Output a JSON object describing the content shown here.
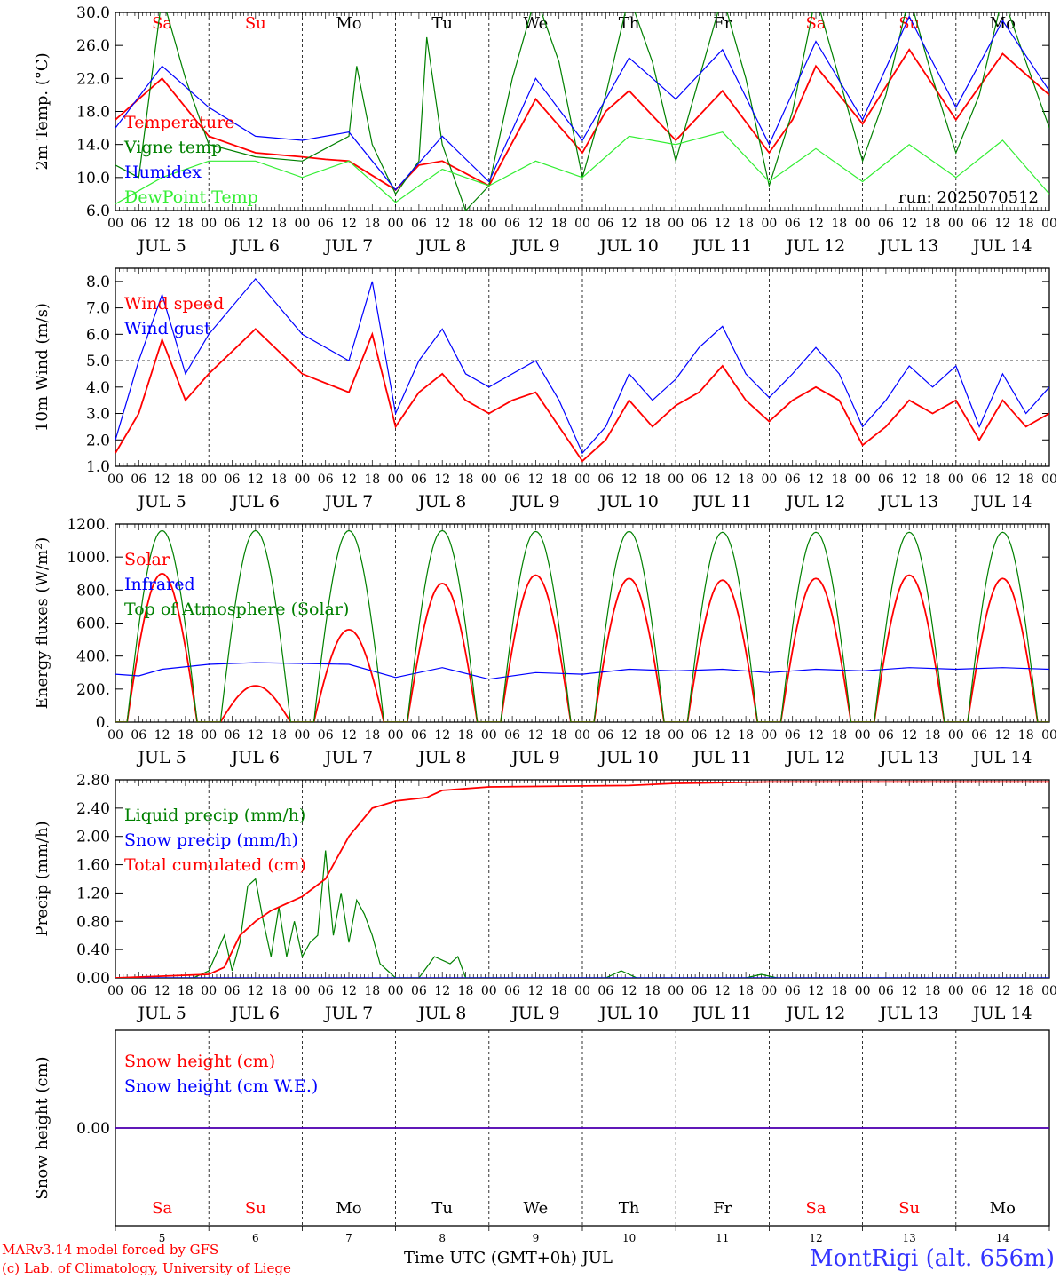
{
  "colors": {
    "red": "#ff0000",
    "green": "#008000",
    "blue": "#0000ff",
    "lightgreen": "#33ee33",
    "station": "#3333ff",
    "axis": "#000000"
  },
  "footer": {
    "model": "MARv3.14 model forced by GFS",
    "lab": "(c) Lab. of Climatology, University of Liege",
    "time_label": "Time UTC (GMT+0h) JUL",
    "station": "MontRigi (alt. 656m)"
  },
  "chart_data": {
    "type": "line",
    "time_axis": {
      "unit": "hours",
      "hour_ticks": [
        "00",
        "06",
        "12",
        "18"
      ],
      "days": [
        {
          "date": "JUL  5",
          "num": "5",
          "dow": "Sa",
          "weekend": true
        },
        {
          "date": "JUL  6",
          "num": "6",
          "dow": "Su",
          "weekend": true
        },
        {
          "date": "JUL  7",
          "num": "7",
          "dow": "Mo",
          "weekend": false
        },
        {
          "date": "JUL  8",
          "num": "8",
          "dow": "Tu",
          "weekend": false
        },
        {
          "date": "JUL  9",
          "num": "9",
          "dow": "We",
          "weekend": false
        },
        {
          "date": "JUL 10",
          "num": "10",
          "dow": "Th",
          "weekend": false
        },
        {
          "date": "JUL 11",
          "num": "11",
          "dow": "Fr",
          "weekend": false
        },
        {
          "date": "JUL 12",
          "num": "12",
          "dow": "Sa",
          "weekend": true
        },
        {
          "date": "JUL 13",
          "num": "13",
          "dow": "Su",
          "weekend": true
        },
        {
          "date": "JUL 14",
          "num": "14",
          "dow": "Mo",
          "weekend": false
        }
      ]
    },
    "panels": [
      {
        "id": "temp",
        "ylabel": "2m Temp. (°C)",
        "ylim": [
          6,
          30
        ],
        "yticks": [
          6,
          10,
          14,
          18,
          22,
          26,
          30
        ],
        "ytick_labels": [
          "6.0",
          "10.0",
          "14.0",
          "18.0",
          "22.0",
          "26.0",
          "30.0"
        ],
        "annotation": "run: 2025070512",
        "show_dow": true,
        "series": [
          {
            "name": "Temperature",
            "color": "red",
            "x": [
              0,
              12,
              24,
              36,
              48,
              54,
              60,
              72,
              78,
              84,
              96,
              108,
              120,
              126,
              132,
              144,
              156,
              168,
              174,
              180,
              192,
              204,
              216,
              228,
              240
            ],
            "y": [
              17,
              22,
              15,
              13,
              12.5,
              12.2,
              12,
              8.5,
              11.5,
              12,
              9,
              19.5,
              13,
              18,
              20.5,
              14.5,
              20.5,
              13,
              17,
              23.5,
              16.5,
              25.5,
              17,
              25,
              20
            ]
          },
          {
            "name": "Vigne temp",
            "color": "green",
            "x": [
              0,
              6,
              12,
              18,
              24,
              36,
              48,
              60,
              62,
              66,
              72,
              78,
              80,
              84,
              90,
              96,
              102,
              108,
              114,
              120,
              126,
              132,
              138,
              144,
              150,
              156,
              162,
              168,
              174,
              180,
              186,
              192,
              198,
              204,
              210,
              216,
              222,
              228,
              234,
              240
            ],
            "y": [
              11.5,
              10,
              32,
              22,
              14,
              12.5,
              12,
              15,
              23.5,
              14,
              8,
              12,
              27,
              14,
              6,
              9,
              22,
              32,
              24,
              10,
              20,
              32,
              24,
              12,
              22,
              32,
              22,
              9,
              18,
              32,
              22,
              12,
              20,
              32,
              22,
              13,
              20,
              32,
              24,
              16
            ]
          },
          {
            "name": "Humidex",
            "color": "blue",
            "x": [
              0,
              12,
              24,
              36,
              48,
              60,
              72,
              84,
              96,
              108,
              120,
              132,
              144,
              156,
              168,
              180,
              192,
              204,
              216,
              228,
              240
            ],
            "y": [
              16,
              23.5,
              18.5,
              15,
              14.5,
              15.5,
              8.5,
              15,
              9.5,
              22,
              14.5,
              24.5,
              19.5,
              25.5,
              14,
              26.5,
              17,
              29.5,
              18.5,
              29,
              20.5
            ]
          },
          {
            "name": "DewPoint Temp",
            "color": "lightgreen",
            "x": [
              0,
              12,
              24,
              36,
              48,
              60,
              72,
              84,
              96,
              108,
              120,
              132,
              144,
              156,
              168,
              180,
              192,
              204,
              216,
              228,
              240
            ],
            "y": [
              6.8,
              10,
              12,
              12,
              10,
              12,
              7,
              11,
              9,
              12,
              10,
              15,
              14,
              15.5,
              9.5,
              13.5,
              9.5,
              14,
              10,
              14.5,
              8
            ]
          }
        ]
      },
      {
        "id": "wind",
        "ylabel": "10m Wind (m/s)",
        "ylim": [
          1,
          8.5
        ],
        "yticks": [
          1,
          2,
          3,
          4,
          5,
          6,
          7,
          8
        ],
        "ytick_labels": [
          "1.0",
          "2.0",
          "3.0",
          "4.0",
          "5.0",
          "6.0",
          "7.0",
          "8.0"
        ],
        "dashed_line": 5,
        "series": [
          {
            "name": "Wind speed",
            "color": "red",
            "x": [
              0,
              6,
              12,
              18,
              24,
              36,
              48,
              60,
              66,
              72,
              78,
              84,
              90,
              96,
              102,
              108,
              114,
              120,
              126,
              132,
              138,
              144,
              150,
              156,
              162,
              168,
              174,
              180,
              186,
              192,
              198,
              204,
              210,
              216,
              222,
              228,
              234,
              240
            ],
            "y": [
              1.5,
              3,
              5.8,
              3.5,
              4.5,
              6.2,
              4.5,
              3.8,
              6,
              2.5,
              3.8,
              4.5,
              3.5,
              3,
              3.5,
              3.8,
              2.5,
              1.2,
              2,
              3.5,
              2.5,
              3.3,
              3.8,
              4.8,
              3.5,
              2.7,
              3.5,
              4,
              3.5,
              1.8,
              2.5,
              3.5,
              3,
              3.5,
              2,
              3.5,
              2.5,
              3
            ]
          },
          {
            "name": "Wind gust",
            "color": "blue",
            "x": [
              0,
              6,
              12,
              18,
              24,
              36,
              48,
              60,
              66,
              72,
              78,
              84,
              90,
              96,
              102,
              108,
              114,
              120,
              126,
              132,
              138,
              144,
              150,
              156,
              162,
              168,
              174,
              180,
              186,
              192,
              198,
              204,
              210,
              216,
              222,
              228,
              234,
              240
            ],
            "y": [
              2,
              5,
              7.5,
              4.5,
              6,
              8.1,
              6,
              5,
              8,
              3,
              5,
              6.2,
              4.5,
              4,
              4.5,
              5,
              3.5,
              1.5,
              2.5,
              4.5,
              3.5,
              4.3,
              5.5,
              6.3,
              4.5,
              3.6,
              4.5,
              5.5,
              4.5,
              2.5,
              3.5,
              4.8,
              4,
              4.8,
              2.5,
              4.5,
              3,
              4
            ]
          }
        ]
      },
      {
        "id": "energy",
        "ylabel": "Energy fluxes (W/m²)",
        "ylim": [
          0,
          1200
        ],
        "yticks": [
          0,
          200,
          400,
          600,
          800,
          1000,
          1200
        ],
        "ytick_labels": [
          "0.",
          "200.",
          "400.",
          "600.",
          "800.",
          "1000.",
          "1200."
        ],
        "series": [
          {
            "name": "Solar",
            "color": "red",
            "type": "daily_peaks",
            "peaks": [
              900,
              220,
              560,
              840,
              890,
              870,
              860,
              870,
              890,
              870
            ]
          },
          {
            "name": "Infrared",
            "color": "blue",
            "x": [
              0,
              6,
              12,
              24,
              36,
              48,
              60,
              72,
              84,
              96,
              108,
              120,
              132,
              144,
              156,
              168,
              180,
              192,
              204,
              216,
              228,
              240
            ],
            "y": [
              290,
              280,
              320,
              350,
              360,
              355,
              350,
              270,
              330,
              260,
              300,
              290,
              320,
              310,
              320,
              300,
              320,
              310,
              330,
              320,
              330,
              320
            ]
          },
          {
            "name": "Top of Atmosphere (Solar)",
            "color": "green",
            "type": "daily_peaks",
            "peaks": [
              1160,
              1160,
              1160,
              1160,
              1155,
              1155,
              1150,
              1150,
              1150,
              1150
            ]
          }
        ]
      },
      {
        "id": "precip",
        "ylabel": "Precip (mm/h)",
        "ylim": [
          0,
          2.8
        ],
        "yticks": [
          0,
          0.4,
          0.8,
          1.2,
          1.6,
          2.0,
          2.4,
          2.8
        ],
        "ytick_labels": [
          "0.00",
          "0.40",
          "0.80",
          "1.20",
          "1.60",
          "2.00",
          "2.40",
          "2.80"
        ],
        "series": [
          {
            "name": "Liquid precip (mm/h)",
            "color": "green",
            "x": [
              0,
              20,
              24,
              28,
              30,
              32,
              34,
              36,
              38,
              40,
              42,
              44,
              46,
              48,
              50,
              52,
              54,
              56,
              58,
              60,
              62,
              64,
              66,
              68,
              70,
              72,
              78,
              82,
              86,
              88,
              90,
              92,
              126,
              130,
              134,
              138,
              162,
              166,
              170,
              240
            ],
            "y": [
              0,
              0,
              0.1,
              0.6,
              0.1,
              0.5,
              1.3,
              1.4,
              0.8,
              0.3,
              1.0,
              0.3,
              0.8,
              0.3,
              0.5,
              0.6,
              1.8,
              0.6,
              1.2,
              0.5,
              1.1,
              0.9,
              0.6,
              0.2,
              0.1,
              0,
              0,
              0.3,
              0.2,
              0.3,
              0,
              0,
              0,
              0.1,
              0,
              0,
              0,
              0.05,
              0,
              0
            ]
          },
          {
            "name": "Snow precip (mm/h)",
            "color": "blue",
            "x": [
              0,
              240
            ],
            "y": [
              0,
              0
            ]
          },
          {
            "name": "Total cumulated (cm)",
            "color": "red",
            "x": [
              0,
              24,
              28,
              32,
              36,
              40,
              48,
              54,
              60,
              66,
              72,
              80,
              84,
              96,
              132,
              144,
              168,
              240
            ],
            "y": [
              0,
              0.05,
              0.15,
              0.6,
              0.8,
              0.95,
              1.15,
              1.4,
              2.0,
              2.4,
              2.5,
              2.55,
              2.65,
              2.7,
              2.72,
              2.75,
              2.77,
              2.77
            ]
          }
        ]
      },
      {
        "id": "snow",
        "ylabel": "Snow height (cm)",
        "ylim": [
          -1,
          1
        ],
        "yticks": [
          0
        ],
        "ytick_labels": [
          "0.00"
        ],
        "show_dow_bottom": true,
        "series": [
          {
            "name": "Snow height (cm)",
            "color": "red",
            "x": [
              0,
              240
            ],
            "y": [
              0,
              0
            ]
          },
          {
            "name": "Snow height (cm W.E.)",
            "color": "blue",
            "x": [
              0,
              240
            ],
            "y": [
              0,
              0
            ]
          }
        ]
      }
    ]
  }
}
